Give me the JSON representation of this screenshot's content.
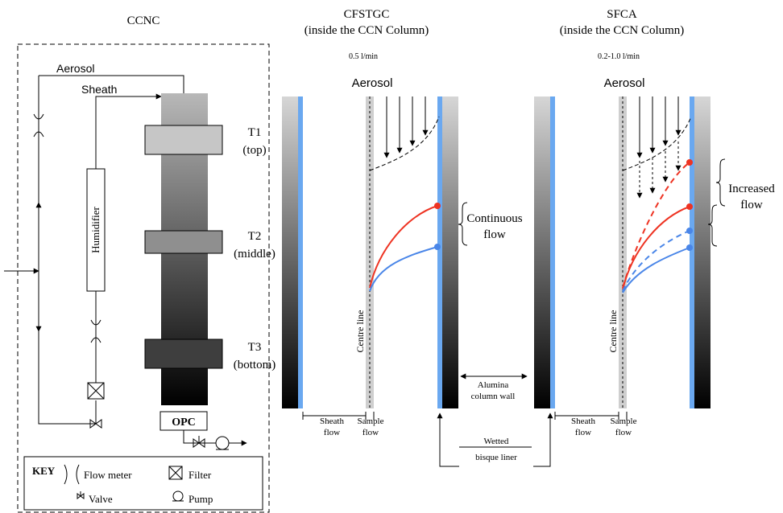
{
  "ccnc": {
    "title": "CCNC",
    "aerosol_label": "Aerosol",
    "sheath_label": "Sheath",
    "humidifier_label": "Humidifier",
    "opc_label": "OPC",
    "stage_t1": "T1",
    "stage_t1_sub": "(top)",
    "stage_t2": "T2",
    "stage_t2_sub": "(middle)",
    "stage_t3": "T3",
    "stage_t3_sub": "(bottom)"
  },
  "key": {
    "title": "KEY",
    "flow_meter": "Flow meter",
    "filter": "Filter",
    "valve": "Valve",
    "pump": "Pump"
  },
  "cfstgc": {
    "title": "CFSTGC",
    "subtitle": "(inside the CCN Column)",
    "flow_rate": "0.5 l/min",
    "aerosol_label": "Aerosol",
    "centre_line": "Centre line",
    "annotation_line1": "Continuous",
    "annotation_line2": "flow",
    "sheath_line1": "Sheath",
    "sheath_line2": "flow",
    "sample_line1": "Sample",
    "sample_line2": "flow"
  },
  "sfca": {
    "title": "SFCA",
    "subtitle": "(inside the CCN Column)",
    "flow_rate": "0.2-1.0 l/min",
    "aerosol_label": "Aerosol",
    "centre_line": "Centre line",
    "annotation_line1": "Increased",
    "annotation_line2": "flow",
    "sheath_line1": "Sheath",
    "sheath_line2": "flow",
    "sample_line1": "Sample",
    "sample_line2": "flow"
  },
  "shared": {
    "alumina_line1": "Alumina",
    "alumina_line2": "column wall",
    "wetted_line1": "Wetted",
    "wetted_line2": "bisque liner"
  },
  "colors": {
    "red_trajectory": "#ee3322",
    "blue_trajectory": "#4a86e8",
    "liner_blue": "#6aa8f0",
    "sample_band": "#cfcfcf"
  }
}
